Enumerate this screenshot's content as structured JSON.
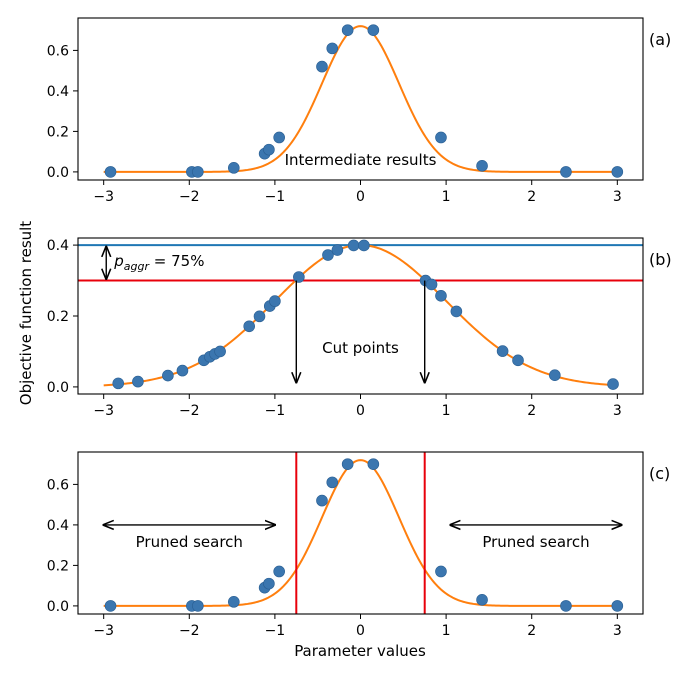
{
  "ylabel": "Objective function result",
  "xlabel": "Parameter values",
  "colors": {
    "curve": "#ff7f0e",
    "points": "#3b76af",
    "points_edge": "#2a5f93",
    "red": "#e8000b",
    "blue": "#1f77b4",
    "axis": "#000000"
  },
  "chart_data": [
    {
      "panel_label": "(a)",
      "type": "scatter",
      "xlim": [
        -3.3,
        3.3
      ],
      "ylim": [
        -0.04,
        0.76
      ],
      "xticks": [
        -3,
        -2,
        -1,
        0,
        1,
        2,
        3
      ],
      "yticks": [
        0.0,
        0.2,
        0.4,
        0.6
      ],
      "xtick_labels": [
        "−3",
        "−2",
        "−1",
        "0",
        "1",
        "2",
        "3"
      ],
      "ytick_labels": [
        "0.0",
        "0.2",
        "0.4",
        "0.6"
      ],
      "show_xtick_labels": true,
      "curve": {
        "type": "gaussian",
        "amplitude": 0.72,
        "sigma": 0.45,
        "x_range": [
          -3,
          3
        ]
      },
      "points": [
        {
          "x": -2.92,
          "y": 0.0
        },
        {
          "x": -1.97,
          "y": 0.0
        },
        {
          "x": -1.9,
          "y": 0.0
        },
        {
          "x": -1.48,
          "y": 0.02
        },
        {
          "x": -1.12,
          "y": 0.09
        },
        {
          "x": -1.07,
          "y": 0.11
        },
        {
          "x": -0.95,
          "y": 0.17
        },
        {
          "x": -0.45,
          "y": 0.52
        },
        {
          "x": -0.33,
          "y": 0.61
        },
        {
          "x": -0.15,
          "y": 0.7
        },
        {
          "x": 0.15,
          "y": 0.7
        },
        {
          "x": 0.94,
          "y": 0.17
        },
        {
          "x": 1.42,
          "y": 0.03
        },
        {
          "x": 2.4,
          "y": 0.0
        },
        {
          "x": 3.0,
          "y": 0.0
        }
      ],
      "annotations": [
        {
          "text": "Intermediate results",
          "x": 0.0,
          "y": 0.06
        }
      ]
    },
    {
      "panel_label": "(b)",
      "type": "scatter",
      "xlim": [
        -3.3,
        3.3
      ],
      "ylim": [
        -0.02,
        0.42
      ],
      "xticks": [
        -3,
        -2,
        -1,
        0,
        1,
        2,
        3
      ],
      "yticks": [
        0.0,
        0.2,
        0.4
      ],
      "xtick_labels": [
        "−3",
        "−2",
        "−1",
        "0",
        "1",
        "2",
        "3"
      ],
      "ytick_labels": [
        "0.0",
        "0.2",
        "0.4"
      ],
      "show_xtick_labels": true,
      "curve": {
        "type": "gaussian",
        "amplitude": 0.4,
        "sigma": 1.0,
        "x_range": [
          -3,
          3
        ]
      },
      "hlines": [
        {
          "y": 0.4,
          "color": "blue"
        },
        {
          "y": 0.3,
          "color": "red"
        }
      ],
      "points": [
        {
          "x": -2.83,
          "y": 0.01
        },
        {
          "x": -2.6,
          "y": 0.015
        },
        {
          "x": -2.25,
          "y": 0.032
        },
        {
          "x": -2.08,
          "y": 0.046
        },
        {
          "x": -1.83,
          "y": 0.075
        },
        {
          "x": -1.76,
          "y": 0.085
        },
        {
          "x": -1.7,
          "y": 0.093
        },
        {
          "x": -1.64,
          "y": 0.1
        },
        {
          "x": -1.3,
          "y": 0.171
        },
        {
          "x": -1.18,
          "y": 0.199
        },
        {
          "x": -1.06,
          "y": 0.228
        },
        {
          "x": -1.0,
          "y": 0.242
        },
        {
          "x": -0.72,
          "y": 0.31
        },
        {
          "x": -0.38,
          "y": 0.372
        },
        {
          "x": -0.27,
          "y": 0.386
        },
        {
          "x": -0.08,
          "y": 0.399
        },
        {
          "x": 0.04,
          "y": 0.399
        },
        {
          "x": 0.76,
          "y": 0.3
        },
        {
          "x": 0.83,
          "y": 0.289
        },
        {
          "x": 0.94,
          "y": 0.257
        },
        {
          "x": 1.12,
          "y": 0.213
        },
        {
          "x": 1.66,
          "y": 0.101
        },
        {
          "x": 1.84,
          "y": 0.075
        },
        {
          "x": 2.27,
          "y": 0.033
        },
        {
          "x": 2.95,
          "y": 0.008
        }
      ],
      "cut_points": [
        -0.75,
        0.75
      ],
      "annotations": [
        {
          "text": "Cut points",
          "x": 0.0,
          "y": 0.11
        },
        {
          "text": "p_aggr = 75%",
          "x": -2.9,
          "y": 0.355
        }
      ]
    },
    {
      "panel_label": "(c)",
      "type": "scatter",
      "xlim": [
        -3.3,
        3.3
      ],
      "ylim": [
        -0.04,
        0.76
      ],
      "xticks": [
        -3,
        -2,
        -1,
        0,
        1,
        2,
        3
      ],
      "yticks": [
        0.0,
        0.2,
        0.4,
        0.6
      ],
      "xtick_labels": [
        "−3",
        "−2",
        "−1",
        "0",
        "1",
        "2",
        "3"
      ],
      "ytick_labels": [
        "0.0",
        "0.2",
        "0.4",
        "0.6"
      ],
      "show_xtick_labels": true,
      "curve": {
        "type": "gaussian",
        "amplitude": 0.72,
        "sigma": 0.45,
        "x_range": [
          -3,
          3
        ]
      },
      "vlines": [
        {
          "x": -0.75,
          "color": "red"
        },
        {
          "x": 0.75,
          "color": "red"
        }
      ],
      "points": [
        {
          "x": -2.92,
          "y": 0.0
        },
        {
          "x": -1.97,
          "y": 0.0
        },
        {
          "x": -1.9,
          "y": 0.0
        },
        {
          "x": -1.48,
          "y": 0.02
        },
        {
          "x": -1.12,
          "y": 0.09
        },
        {
          "x": -1.07,
          "y": 0.11
        },
        {
          "x": -0.95,
          "y": 0.17
        },
        {
          "x": -0.45,
          "y": 0.52
        },
        {
          "x": -0.33,
          "y": 0.61
        },
        {
          "x": -0.15,
          "y": 0.7
        },
        {
          "x": 0.15,
          "y": 0.7
        },
        {
          "x": 0.94,
          "y": 0.17
        },
        {
          "x": 1.42,
          "y": 0.03
        },
        {
          "x": 2.4,
          "y": 0.0
        },
        {
          "x": 3.0,
          "y": 0.0
        }
      ],
      "pruned_ranges": [
        {
          "text": "Pruned search",
          "x_from": -3.0,
          "x_to": -1.0,
          "y": 0.4
        },
        {
          "text": "Pruned search",
          "x_from": 1.05,
          "x_to": 3.05,
          "y": 0.4
        }
      ]
    }
  ]
}
